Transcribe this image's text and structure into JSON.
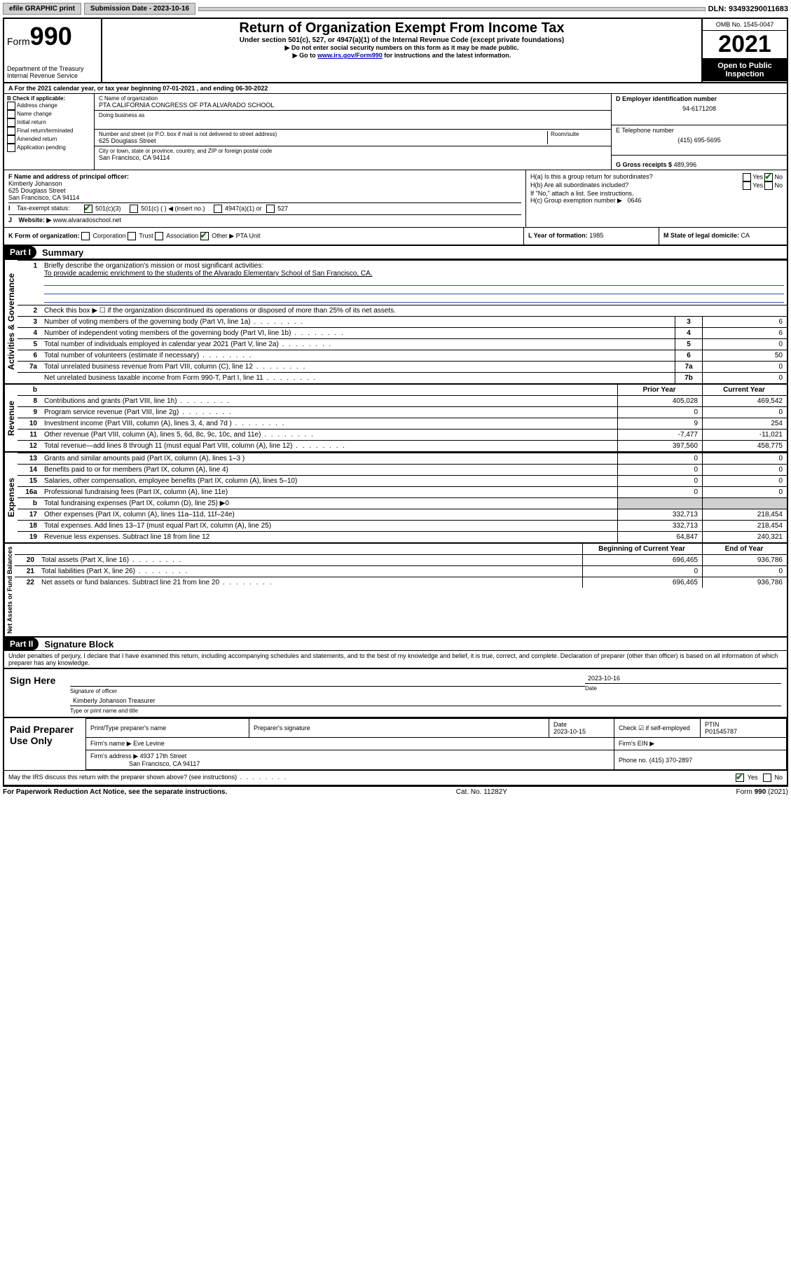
{
  "topbar": {
    "efile": "efile GRAPHIC print",
    "submission_label": "Submission Date - 2023-10-16",
    "dln": "DLN: 93493290011683"
  },
  "header": {
    "form_prefix": "Form",
    "form_number": "990",
    "department": "Department of the Treasury",
    "irs": "Internal Revenue Service",
    "title": "Return of Organization Exempt From Income Tax",
    "subtitle": "Under section 501(c), 527, or 4947(a)(1) of the Internal Revenue Code (except private foundations)",
    "note1": "▶ Do not enter social security numbers on this form as it may be made public.",
    "note2_prefix": "▶ Go to ",
    "note2_link": "www.irs.gov/Form990",
    "note2_suffix": " for instructions and the latest information.",
    "omb": "OMB No. 1545-0047",
    "year": "2021",
    "open": "Open to Public Inspection"
  },
  "a_line": "For the 2021 calendar year, or tax year beginning 07-01-2021   , and ending 06-30-2022",
  "section_b": {
    "label": "B Check if applicable:",
    "items": [
      "Address change",
      "Name change",
      "Initial return",
      "Final return/terminated",
      "Amended return",
      "Application pending"
    ]
  },
  "section_c": {
    "name_label": "C Name of organization",
    "name": "PTA CALIFORNIA CONGRESS OF PTA ALVARADO SCHOOL",
    "dba_label": "Doing business as",
    "addr_label": "Number and street (or P.O. box if mail is not delivered to street address)",
    "room_label": "Room/suite",
    "addr": "625 Douglass Street",
    "city_label": "City or town, state or province, country, and ZIP or foreign postal code",
    "city": "San Francisco, CA  94114"
  },
  "section_d": {
    "label": "D Employer identification number",
    "value": "94-6171208"
  },
  "section_e": {
    "label": "E Telephone number",
    "value": "(415) 695-5695"
  },
  "section_g": {
    "label": "G Gross receipts $",
    "value": "489,996"
  },
  "section_f": {
    "label": "F  Name and address of principal officer:",
    "name": "Kimberly Johanson",
    "addr1": "625 Douglass Street",
    "addr2": "San Francisco, CA  94114"
  },
  "section_h": {
    "ha": "H(a)  Is this a group return for subordinates?",
    "ha_no": "No",
    "hb": "H(b)  Are all subordinates included?",
    "hb_note": "If \"No,\" attach a list. See instructions.",
    "hc": "H(c)  Group exemption number ▶",
    "hc_val": "0646"
  },
  "tax_exempt": {
    "label_i": "I",
    "label": "Tax-exempt status:",
    "c3": "501(c)(3)",
    "c": "501(c) (  ) ◀ (insert no.)",
    "a1": "4947(a)(1) or",
    "s527": "527"
  },
  "website": {
    "label_j": "J",
    "label": "Website: ▶",
    "value": "www.alvaradoschool.net"
  },
  "section_k": {
    "label": "K Form of organization:",
    "corp": "Corporation",
    "trust": "Trust",
    "assoc": "Association",
    "other": "Other ▶",
    "other_val": "PTA Unit"
  },
  "section_l": {
    "label": "L Year of formation:",
    "value": "1985"
  },
  "section_m": {
    "label": "M State of legal domicile:",
    "value": "CA"
  },
  "part1": {
    "header": "Part I",
    "title": "Summary",
    "l1_label": "Briefly describe the organization's mission or most significant activities:",
    "l1_text": "To provide academic enrichment to the students of the Alvarado Elementary School of San Francisco, CA.",
    "l2": "Check this box ▶ ☐  if the organization discontinued its operations or disposed of more than 25% of its net assets.",
    "vert_ag": "Activities & Governance",
    "vert_rev": "Revenue",
    "vert_exp": "Expenses",
    "vert_na": "Net Assets or Fund Balances",
    "col_prior": "Prior Year",
    "col_current": "Current Year",
    "col_begin": "Beginning of Current Year",
    "col_end": "End of Year",
    "lines_ag": [
      {
        "n": "3",
        "t": "Number of voting members of the governing body (Part VI, line 1a)",
        "box": "3",
        "v": "6"
      },
      {
        "n": "4",
        "t": "Number of independent voting members of the governing body (Part VI, line 1b)",
        "box": "4",
        "v": "6"
      },
      {
        "n": "5",
        "t": "Total number of individuals employed in calendar year 2021 (Part V, line 2a)",
        "box": "5",
        "v": "0"
      },
      {
        "n": "6",
        "t": "Total number of volunteers (estimate if necessary)",
        "box": "6",
        "v": "50"
      },
      {
        "n": "7a",
        "t": "Total unrelated business revenue from Part VIII, column (C), line 12",
        "box": "7a",
        "v": "0"
      },
      {
        "n": "",
        "t": "Net unrelated business taxable income from Form 990-T, Part I, line 11",
        "box": "7b",
        "v": "0"
      }
    ],
    "lines_rev": [
      {
        "n": "8",
        "t": "Contributions and grants (Part VIII, line 1h)",
        "p": "405,028",
        "c": "469,542"
      },
      {
        "n": "9",
        "t": "Program service revenue (Part VIII, line 2g)",
        "p": "0",
        "c": "0"
      },
      {
        "n": "10",
        "t": "Investment income (Part VIII, column (A), lines 3, 4, and 7d )",
        "p": "9",
        "c": "254"
      },
      {
        "n": "11",
        "t": "Other revenue (Part VIII, column (A), lines 5, 6d, 8c, 9c, 10c, and 11e)",
        "p": "-7,477",
        "c": "-11,021"
      },
      {
        "n": "12",
        "t": "Total revenue—add lines 8 through 11 (must equal Part VIII, column (A), line 12)",
        "p": "397,560",
        "c": "458,775"
      }
    ],
    "lines_exp": [
      {
        "n": "13",
        "t": "Grants and similar amounts paid (Part IX, column (A), lines 1–3 )",
        "p": "0",
        "c": "0"
      },
      {
        "n": "14",
        "t": "Benefits paid to or for members (Part IX, column (A), line 4)",
        "p": "0",
        "c": "0"
      },
      {
        "n": "15",
        "t": "Salaries, other compensation, employee benefits (Part IX, column (A), lines 5–10)",
        "p": "0",
        "c": "0"
      },
      {
        "n": "16a",
        "t": "Professional fundraising fees (Part IX, column (A), line 11e)",
        "p": "0",
        "c": "0"
      },
      {
        "n": "b",
        "t": "Total fundraising expenses (Part IX, column (D), line 25) ▶0",
        "p": "",
        "c": ""
      },
      {
        "n": "17",
        "t": "Other expenses (Part IX, column (A), lines 11a–11d, 11f–24e)",
        "p": "332,713",
        "c": "218,454"
      },
      {
        "n": "18",
        "t": "Total expenses. Add lines 13–17 (must equal Part IX, column (A), line 25)",
        "p": "332,713",
        "c": "218,454"
      },
      {
        "n": "19",
        "t": "Revenue less expenses. Subtract line 18 from line 12",
        "p": "64,847",
        "c": "240,321"
      }
    ],
    "lines_na": [
      {
        "n": "20",
        "t": "Total assets (Part X, line 16)",
        "p": "696,465",
        "c": "936,786"
      },
      {
        "n": "21",
        "t": "Total liabilities (Part X, line 26)",
        "p": "0",
        "c": "0"
      },
      {
        "n": "22",
        "t": "Net assets or fund balances. Subtract line 21 from line 20",
        "p": "696,465",
        "c": "936,786"
      }
    ]
  },
  "part2": {
    "header": "Part II",
    "title": "Signature Block",
    "declaration": "Under penalties of perjury, I declare that I have examined this return, including accompanying schedules and statements, and to the best of my knowledge and belief, it is true, correct, and complete. Declaration of preparer (other than officer) is based on all information of which preparer has any knowledge.",
    "sign_here": "Sign Here",
    "sig_officer": "Signature of officer",
    "sig_date": "Date",
    "sig_date_val": "2023-10-16",
    "sig_name": "Kimberly Johanson  Treasurer",
    "sig_name_label": "Type or print name and title",
    "paid": "Paid Preparer Use Only",
    "prep_name_label": "Print/Type preparer's name",
    "prep_sig_label": "Preparer's signature",
    "prep_date_label": "Date",
    "prep_date": "2023-10-15",
    "prep_check": "Check ☑ if self-employed",
    "ptin_label": "PTIN",
    "ptin": "P01545787",
    "firm_name_label": "Firm's name    ▶",
    "firm_name": "Eve Levine",
    "firm_ein_label": "Firm's EIN ▶",
    "firm_addr_label": "Firm's address ▶",
    "firm_addr1": "4937 17th Street",
    "firm_addr2": "San Francisco, CA  94117",
    "firm_phone_label": "Phone no.",
    "firm_phone": "(415) 370-2897",
    "discuss": "May the IRS discuss this return with the preparer shown above? (see instructions)",
    "yes": "Yes",
    "no": "No"
  },
  "footer": {
    "left": "For Paperwork Reduction Act Notice, see the separate instructions.",
    "center": "Cat. No. 11282Y",
    "right": "Form 990 (2021)"
  }
}
